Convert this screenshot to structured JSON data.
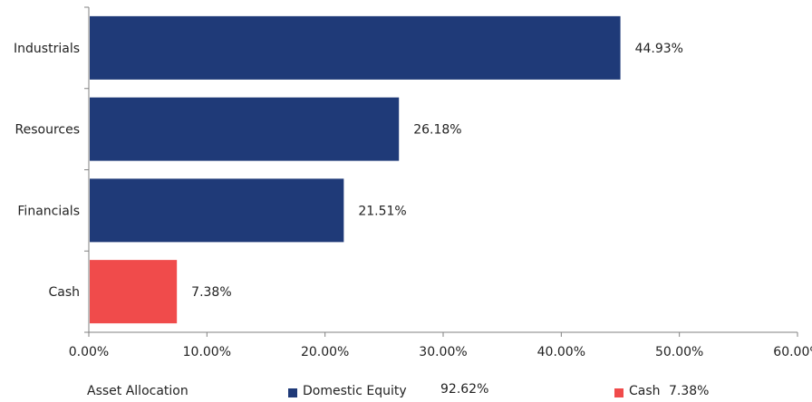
{
  "chart_data": {
    "type": "bar",
    "orientation": "horizontal",
    "categories": [
      "Industrials",
      "Resources",
      "Financials",
      "Cash"
    ],
    "values": [
      44.93,
      26.18,
      21.51,
      7.38
    ],
    "value_labels": [
      "44.93%",
      "26.18%",
      "21.51%",
      "7.38%"
    ],
    "bar_colors": [
      "#1f3a78",
      "#1f3a78",
      "#1f3a78",
      "#f04b4b"
    ],
    "xlim": [
      0,
      60
    ],
    "x_ticks": [
      0,
      10,
      20,
      30,
      40,
      50,
      60
    ],
    "x_tick_labels": [
      "0.00%",
      "10.00%",
      "20.00%",
      "30.00%",
      "40.00%",
      "50.00%",
      "60.00%"
    ],
    "grid": false
  },
  "legend": {
    "title": "Asset Allocation",
    "items": [
      {
        "label": "Domestic Equity",
        "value": "92.62%",
        "color": "#1f3a78"
      },
      {
        "label": "Cash",
        "value": "7.38%",
        "color": "#f04b4b"
      }
    ]
  }
}
